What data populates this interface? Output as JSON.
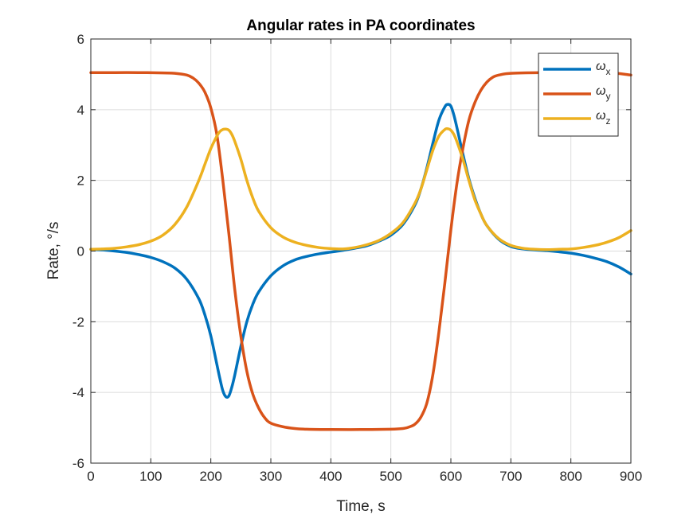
{
  "chart_data": {
    "type": "line",
    "title": "Angular rates in PA coordinates",
    "xlabel": "Time, s",
    "ylabel": "Rate, °/s",
    "xlim": [
      0,
      900
    ],
    "ylim": [
      -6,
      6
    ],
    "xticks": [
      "0",
      "100",
      "200",
      "300",
      "400",
      "500",
      "600",
      "700",
      "800",
      "900"
    ],
    "yticks": [
      "6",
      "4",
      "2",
      "0",
      "-2",
      "-4",
      "-6"
    ],
    "grid": true,
    "legend_position": "top-right",
    "series": [
      {
        "name": "ωx",
        "symbol": "ω",
        "subscript": "x",
        "color": "#0072BD",
        "x": [
          0,
          20,
          40,
          60,
          80,
          100,
          120,
          140,
          160,
          180,
          190,
          200,
          210,
          215,
          220,
          225,
          230,
          235,
          240,
          250,
          260,
          270,
          280,
          300,
          320,
          340,
          360,
          380,
          400,
          420,
          440,
          460,
          480,
          500,
          520,
          540,
          550,
          560,
          570,
          580,
          590,
          595,
          600,
          605,
          610,
          620,
          630,
          640,
          650,
          660,
          680,
          700,
          720,
          740,
          760,
          780,
          800,
          820,
          840,
          860,
          880,
          900
        ],
        "y": [
          0.05,
          0.03,
          0.0,
          -0.04,
          -0.1,
          -0.18,
          -0.3,
          -0.48,
          -0.8,
          -1.35,
          -1.8,
          -2.4,
          -3.2,
          -3.6,
          -3.95,
          -4.12,
          -4.1,
          -3.85,
          -3.5,
          -2.7,
          -2.0,
          -1.5,
          -1.15,
          -0.7,
          -0.42,
          -0.25,
          -0.15,
          -0.08,
          -0.03,
          0.02,
          0.08,
          0.15,
          0.28,
          0.45,
          0.75,
          1.3,
          1.75,
          2.35,
          3.05,
          3.7,
          4.08,
          4.15,
          4.1,
          3.85,
          3.5,
          2.75,
          2.05,
          1.5,
          1.05,
          0.72,
          0.33,
          0.13,
          0.06,
          0.03,
          0.01,
          -0.02,
          -0.06,
          -0.12,
          -0.2,
          -0.3,
          -0.45,
          -0.65
        ]
      },
      {
        "name": "ωy",
        "symbol": "ω",
        "subscript": "y",
        "color": "#D95319",
        "x": [
          0,
          40,
          80,
          120,
          140,
          160,
          170,
          180,
          190,
          200,
          210,
          220,
          230,
          240,
          250,
          260,
          270,
          280,
          290,
          300,
          320,
          340,
          360,
          400,
          450,
          500,
          520,
          530,
          540,
          550,
          560,
          570,
          580,
          590,
          600,
          610,
          620,
          630,
          640,
          650,
          660,
          670,
          680,
          700,
          750,
          800,
          840,
          870,
          900
        ],
        "y": [
          5.05,
          5.05,
          5.05,
          5.04,
          5.03,
          4.98,
          4.9,
          4.75,
          4.5,
          4.05,
          3.3,
          2.0,
          0.5,
          -1.1,
          -2.4,
          -3.4,
          -4.05,
          -4.45,
          -4.72,
          -4.87,
          -4.97,
          -5.02,
          -5.04,
          -5.05,
          -5.05,
          -5.04,
          -5.02,
          -4.98,
          -4.9,
          -4.7,
          -4.3,
          -3.5,
          -2.3,
          -0.9,
          0.6,
          1.9,
          2.9,
          3.7,
          4.2,
          4.55,
          4.78,
          4.92,
          4.98,
          5.03,
          5.05,
          5.05,
          5.05,
          5.04,
          4.98
        ]
      },
      {
        "name": "ωz",
        "symbol": "ω",
        "subscript": "z",
        "color": "#EDB120",
        "x": [
          0,
          20,
          40,
          60,
          80,
          100,
          120,
          140,
          160,
          180,
          190,
          200,
          210,
          215,
          220,
          225,
          230,
          235,
          240,
          250,
          260,
          270,
          280,
          300,
          320,
          340,
          360,
          380,
          400,
          420,
          440,
          460,
          480,
          500,
          520,
          540,
          550,
          560,
          570,
          580,
          590,
          595,
          600,
          605,
          610,
          620,
          630,
          640,
          650,
          660,
          680,
          700,
          720,
          740,
          760,
          780,
          800,
          820,
          840,
          860,
          880,
          900
        ],
        "y": [
          0.05,
          0.06,
          0.08,
          0.12,
          0.18,
          0.28,
          0.45,
          0.75,
          1.25,
          2.0,
          2.45,
          2.9,
          3.25,
          3.38,
          3.44,
          3.45,
          3.42,
          3.3,
          3.1,
          2.6,
          2.0,
          1.5,
          1.12,
          0.66,
          0.4,
          0.25,
          0.16,
          0.1,
          0.07,
          0.06,
          0.1,
          0.18,
          0.3,
          0.5,
          0.8,
          1.35,
          1.75,
          2.3,
          2.85,
          3.25,
          3.44,
          3.46,
          3.42,
          3.3,
          3.1,
          2.6,
          2.0,
          1.45,
          1.05,
          0.72,
          0.35,
          0.16,
          0.08,
          0.05,
          0.04,
          0.05,
          0.06,
          0.1,
          0.16,
          0.25,
          0.38,
          0.58
        ]
      }
    ]
  }
}
